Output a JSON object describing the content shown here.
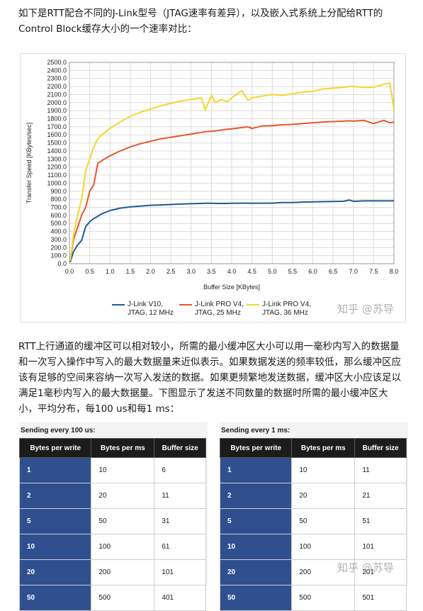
{
  "intro": "如下是RTT配合不同的J-Link型号（JTAG速率有差异），以及嵌入式系统上分配给RTT的Control Block缓存大小的一个速率对比：",
  "chart_data": {
    "type": "line",
    "xlabel": "Buffer Size [KBytes]",
    "ylabel": "Transfer Speed [KBytes/sec]",
    "x": [
      0.02,
      0.1,
      0.2,
      0.3,
      0.4,
      0.5,
      0.6,
      0.7,
      0.8,
      1.0,
      1.25,
      1.5,
      1.75,
      2.0,
      2.25,
      2.5,
      2.75,
      3.0,
      3.25,
      3.35,
      3.5,
      3.6,
      3.75,
      3.9,
      4.0,
      4.25,
      4.4,
      4.5,
      4.75,
      5.0,
      5.25,
      5.5,
      5.75,
      6.0,
      6.25,
      6.5,
      6.75,
      6.9,
      7.0,
      7.25,
      7.5,
      7.75,
      7.9,
      8.0
    ],
    "series": [
      {
        "name": "J-Link V10, JTAG, 12 MHz",
        "color": "#1f5a96",
        "values": [
          20,
          150,
          230,
          290,
          460,
          520,
          560,
          590,
          620,
          660,
          690,
          705,
          715,
          725,
          730,
          735,
          740,
          745,
          748,
          750,
          750,
          748,
          748,
          748,
          750,
          752,
          752,
          750,
          752,
          752,
          760,
          760,
          765,
          768,
          770,
          772,
          775,
          790,
          775,
          780,
          780,
          780,
          780,
          780
        ]
      },
      {
        "name": "J-Link PRO V4, JTAG, 25 MHz",
        "color": "#e8562a",
        "values": [
          30,
          300,
          450,
          600,
          700,
          900,
          980,
          1250,
          1280,
          1340,
          1400,
          1450,
          1490,
          1520,
          1550,
          1570,
          1590,
          1610,
          1630,
          1640,
          1645,
          1650,
          1660,
          1670,
          1675,
          1690,
          1700,
          1680,
          1710,
          1715,
          1725,
          1730,
          1740,
          1750,
          1760,
          1765,
          1770,
          1775,
          1770,
          1780,
          1740,
          1780,
          1750,
          1760
        ]
      },
      {
        "name": "J-Link PRO V4, JTAG, 36 MHz",
        "color": "#f5d62a",
        "values": [
          40,
          350,
          600,
          800,
          1150,
          1300,
          1450,
          1550,
          1600,
          1680,
          1760,
          1830,
          1880,
          1920,
          1960,
          1990,
          2020,
          2040,
          2060,
          1910,
          2090,
          2000,
          2040,
          2010,
          2060,
          2150,
          2030,
          2060,
          2080,
          2100,
          2090,
          2110,
          2130,
          2140,
          2170,
          2180,
          2190,
          2200,
          2200,
          2190,
          2190,
          2230,
          2240,
          1920
        ]
      }
    ],
    "xlim": [
      0,
      8
    ],
    "ylim": [
      0,
      2500
    ],
    "xticks": [
      {
        "value": 0,
        "label": "0.0"
      },
      {
        "value": 0.5,
        "label": "0.5"
      },
      {
        "value": 1,
        "label": "1.0"
      },
      {
        "value": 1.5,
        "label": "1.5"
      },
      {
        "value": 2,
        "label": "2.0"
      },
      {
        "value": 2.5,
        "label": "2.5"
      },
      {
        "value": 3,
        "label": "3.0"
      },
      {
        "value": 3.5,
        "label": "3.5"
      },
      {
        "value": 4,
        "label": "4.0"
      },
      {
        "value": 4.5,
        "label": "4.5"
      },
      {
        "value": 5,
        "label": "5.0"
      },
      {
        "value": 5.5,
        "label": "5.5"
      },
      {
        "value": 6,
        "label": "6.0"
      },
      {
        "value": 6.5,
        "label": "6.5"
      },
      {
        "value": 7,
        "label": "7.0"
      },
      {
        "value": 7.5,
        "label": "7.5"
      },
      {
        "value": 8,
        "label": "8.0"
      }
    ],
    "yticks": [
      {
        "value": 0,
        "label": "0.0"
      },
      {
        "value": 100,
        "label": "100.0"
      },
      {
        "value": 200,
        "label": "200.0"
      },
      {
        "value": 300,
        "label": "300.0"
      },
      {
        "value": 400,
        "label": "400.0"
      },
      {
        "value": 500,
        "label": "500.0"
      },
      {
        "value": 600,
        "label": "600.0"
      },
      {
        "value": 700,
        "label": "700.0"
      },
      {
        "value": 800,
        "label": "800.0"
      },
      {
        "value": 900,
        "label": "900.0"
      },
      {
        "value": 1000,
        "label": "1000.0"
      },
      {
        "value": 1100,
        "label": "1100.0"
      },
      {
        "value": 1200,
        "label": "1200.0"
      },
      {
        "value": 1300,
        "label": "1300.0"
      },
      {
        "value": 1400,
        "label": "1400.0"
      },
      {
        "value": 1500,
        "label": "1500.0"
      },
      {
        "value": 1600,
        "label": "1600.0"
      },
      {
        "value": 1700,
        "label": "1700.0"
      },
      {
        "value": 1800,
        "label": "1800.0"
      },
      {
        "value": 1900,
        "label": "1900.0"
      },
      {
        "value": 2000,
        "label": "2000.0"
      },
      {
        "value": 2100,
        "label": "2100.0"
      },
      {
        "value": 2200,
        "label": "2200.0"
      },
      {
        "value": 2300,
        "label": "2300.0"
      },
      {
        "value": 2400,
        "label": "2400.0"
      },
      {
        "value": 2500,
        "label": "2500.0"
      }
    ],
    "grid": true
  },
  "body": "RTT上行通道的缓冲区可以相对较小，所需的最小缓冲区大小可以用一毫秒内写入的数据量和一次写入操作中写入的最大数据量来近似表示。如果数据发送的频率较低，那么缓冲区应该有足够的空间来容纳一次写入发送的数据。如果更频繁地发送数据，缓冲区大小应该足以满足1毫秒内写入的最大数据量。下图显示了发送不同数量的数据时所需的最小缓冲区大小，平均分布，每100 us和每1 ms：",
  "tables": [
    {
      "caption": "Sending every 100 us:",
      "columns": [
        "Bytes per write",
        "Bytes per ms",
        "Buffer size"
      ],
      "rows": [
        [
          1,
          10,
          6
        ],
        [
          2,
          20,
          11
        ],
        [
          5,
          50,
          31
        ],
        [
          10,
          100,
          61
        ],
        [
          20,
          200,
          101
        ],
        [
          50,
          500,
          401
        ]
      ]
    },
    {
      "caption": "Sending every 1 ms:",
      "columns": [
        "Bytes per write",
        "Bytes per ms",
        "Buffer size"
      ],
      "rows": [
        [
          1,
          10,
          11
        ],
        [
          2,
          20,
          21
        ],
        [
          5,
          50,
          51
        ],
        [
          10,
          100,
          101
        ],
        [
          20,
          200,
          201
        ],
        [
          50,
          500,
          501
        ]
      ]
    }
  ],
  "watermark": "知乎 @苏导"
}
